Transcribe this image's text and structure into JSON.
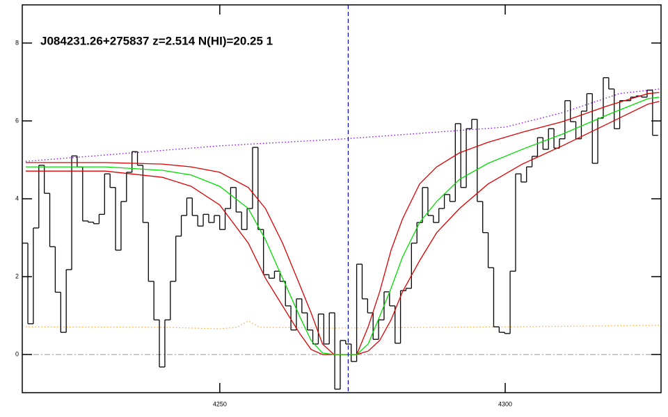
{
  "chart_data": {
    "type": "line",
    "title": "J084231.26+275837 z=2.514 N(HI)=20.25 1",
    "xlim": [
      4215.4,
      4327.3
    ],
    "xticks": [
      4250,
      4300
    ],
    "ylim": [
      -0.98,
      8.98
    ],
    "yticks": [
      0,
      2,
      4,
      6,
      8
    ],
    "vline": {
      "x": 4272.5,
      "color": "#0000cc"
    },
    "hline": {
      "y": 0,
      "color": "#999999"
    },
    "series": [
      {
        "color": "#ffaa33",
        "style": "dotted",
        "x": [
          4216,
          4240,
          4250,
          4253,
          4255,
          4257,
          4270,
          4300,
          4327
        ],
        "values": [
          0.71,
          0.7,
          0.66,
          0.7,
          0.86,
          0.7,
          0.68,
          0.71,
          0.75
        ]
      },
      {
        "color": "#8800ff",
        "style": "dotted",
        "x": [
          4216,
          4250,
          4272,
          4300,
          4310,
          4320,
          4327
        ],
        "values": [
          4.96,
          5.36,
          5.54,
          5.84,
          6.21,
          6.7,
          6.82
        ]
      },
      {
        "color": "#000000",
        "style": "step",
        "x": [
          4215.9,
          4216.86,
          4217.82,
          4218.78,
          4219.74,
          4220.7,
          4221.66,
          4222.62,
          4223.58,
          4224.54,
          4225.5,
          4226.46,
          4227.42,
          4228.38,
          4229.34,
          4230.3,
          4231.26,
          4232.22,
          4233.18,
          4234.14,
          4235.1,
          4236.06,
          4237.02,
          4237.98,
          4238.94,
          4239.9,
          4240.86,
          4241.82,
          4242.78,
          4243.74,
          4244.7,
          4245.66,
          4246.62,
          4247.58,
          4248.54,
          4249.5,
          4250.46,
          4251.42,
          4252.38,
          4253.34,
          4254.3,
          4255.26,
          4256.22,
          4257.18,
          4258.14,
          4259.1,
          4260.06,
          4261.02,
          4261.98,
          4262.94,
          4263.9,
          4264.86,
          4265.82,
          4266.78,
          4267.74,
          4268.7,
          4269.66,
          4270.62,
          4271.58,
          4272.54,
          4273.5,
          4274.46,
          4275.42,
          4276.38,
          4277.34,
          4278.3,
          4279.26,
          4280.22,
          4281.18,
          4282.14,
          4283.1,
          4284.06,
          4285.02,
          4285.98,
          4286.94,
          4287.9,
          4288.86,
          4289.82,
          4290.78,
          4291.74,
          4292.7,
          4293.66,
          4294.62,
          4295.58,
          4296.54,
          4297.5,
          4298.46,
          4299.42,
          4300.38,
          4301.34,
          4302.3,
          4303.26,
          4304.22,
          4305.18,
          4306.14,
          4307.1,
          4308.06,
          4309.02,
          4309.98,
          4310.94,
          4311.9,
          4312.86,
          4313.82,
          4314.78,
          4315.74,
          4316.7,
          4317.66,
          4318.62,
          4319.58,
          4320.54,
          4321.5,
          4322.46,
          4323.42,
          4324.38,
          4325.34,
          4326.3
        ],
        "values": [
          2.86,
          0.79,
          3.25,
          4.86,
          4.14,
          2.77,
          1.6,
          0.57,
          2.18,
          5.1,
          4.82,
          3.43,
          3.4,
          3.36,
          3.6,
          4.64,
          4.29,
          2.68,
          3.93,
          4.68,
          5.21,
          4.86,
          3.39,
          1.88,
          0.89,
          -0.32,
          0.89,
          1.88,
          3.04,
          3.57,
          4.02,
          3.57,
          3.3,
          3.6,
          3.39,
          3.57,
          3.21,
          3.75,
          4.29,
          3.66,
          3.21,
          3.75,
          5.32,
          3.21,
          2.05,
          1.96,
          2.14,
          1.88,
          1.25,
          0.63,
          1.43,
          1.07,
          0.63,
          0.27,
          1.04,
          0.27,
          1.07,
          -0.89,
          0.36,
          0.27,
          -0.18,
          2.32,
          1.43,
          1.07,
          0.39,
          0.89,
          1.61,
          1.25,
          0.29,
          1.64,
          1.7,
          2.86,
          3.39,
          4.29,
          3.57,
          3.39,
          3.75,
          4.11,
          3.93,
          5.93,
          4.29,
          5.8,
          6.04,
          3.93,
          3.13,
          2.23,
          0.71,
          0.57,
          0.54,
          2.14,
          4.64,
          4.43,
          4.82,
          5.09,
          5.57,
          5.27,
          5.8,
          5.3,
          5.54,
          6.52,
          5.98,
          5.54,
          6.25,
          6.7,
          4.91,
          6.07,
          7.11,
          6.82,
          5.8,
          6.52,
          6.52,
          6.61,
          6.64,
          6.61,
          6.79,
          5.63
        ]
      },
      {
        "color": "#dd0000",
        "style": "solid",
        "x": [
          4216,
          4230,
          4240,
          4245,
          4250,
          4255,
          4258,
          4261,
          4264,
          4266,
          4268,
          4270,
          4274,
          4276,
          4278,
          4280,
          4282,
          4285,
          4288,
          4292,
          4297,
          4303,
          4310,
          4318,
          4325,
          4327
        ],
        "values": [
          4.93,
          4.93,
          4.89,
          4.82,
          4.68,
          4.29,
          3.75,
          2.86,
          1.79,
          1.07,
          0.27,
          0,
          0,
          0.71,
          1.61,
          2.68,
          3.48,
          4.38,
          4.82,
          5.18,
          5.45,
          5.71,
          5.98,
          6.39,
          6.7,
          6.73
        ]
      },
      {
        "color": "#dd0000",
        "style": "solid",
        "x": [
          4216,
          4230,
          4240,
          4245,
          4250,
          4255,
          4258,
          4261,
          4264,
          4266,
          4268,
          4270,
          4274,
          4276,
          4278,
          4280,
          4282,
          4285,
          4288,
          4292,
          4297,
          4303,
          4310,
          4318,
          4325,
          4327
        ],
        "values": [
          4.71,
          4.71,
          4.55,
          4.32,
          3.84,
          2.86,
          1.96,
          1.25,
          0.54,
          0.13,
          0,
          0,
          0,
          0.09,
          0.36,
          0.89,
          1.61,
          2.41,
          3.13,
          3.75,
          4.38,
          4.89,
          5.36,
          5.93,
          6.43,
          6.5
        ]
      },
      {
        "color": "#00dd00",
        "style": "solid",
        "x": [
          4216,
          4230,
          4240,
          4245,
          4250,
          4255,
          4258,
          4261,
          4264,
          4266,
          4268,
          4270,
          4274,
          4276,
          4278,
          4280,
          4282,
          4285,
          4288,
          4292,
          4297,
          4303,
          4310,
          4318,
          4325,
          4327
        ],
        "values": [
          4.82,
          4.82,
          4.73,
          4.61,
          4.32,
          3.75,
          2.95,
          1.96,
          0.98,
          0.36,
          0.04,
          0,
          0,
          0.27,
          0.98,
          1.7,
          2.5,
          3.39,
          3.93,
          4.5,
          4.91,
          5.27,
          5.66,
          6.16,
          6.57,
          6.61
        ]
      }
    ]
  }
}
